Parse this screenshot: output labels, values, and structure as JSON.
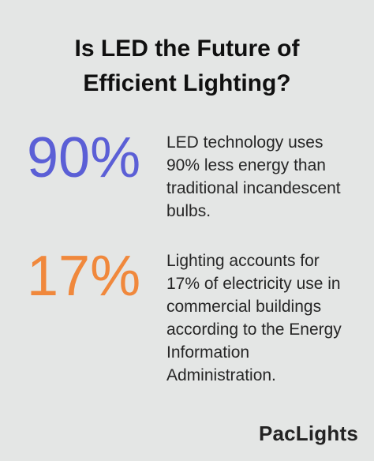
{
  "title": {
    "line1": "Is LED the Future of",
    "line2": "Efficient Lighting?"
  },
  "stats": [
    {
      "value": "90%",
      "color": "#5b5fd6",
      "lines": [
        "LED technology uses",
        "90% less energy than",
        "traditional incandescent",
        "bulbs."
      ]
    },
    {
      "value": "17%",
      "color": "#f0883c",
      "lines": [
        "Lighting accounts for",
        "17% of electricity use in",
        "commercial buildings",
        "according to the Energy",
        "Information",
        "Administration."
      ]
    }
  ],
  "brand": "PacLights"
}
